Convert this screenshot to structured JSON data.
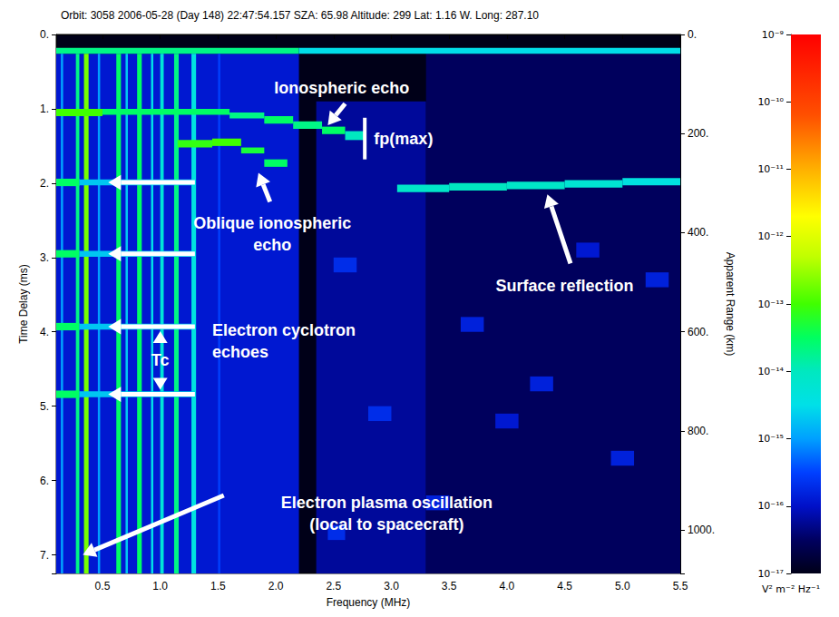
{
  "chart_data": {
    "type": "heatmap",
    "title": "Orbit: 3058 2006-05-28 (Day 148) 22:47:54.157 SZA: 65.98 Altitude: 299 Lat: 1.16 W. Long: 287.10",
    "x_label": "Frequency (MHz)",
    "y_label": "Time Delay (ms)",
    "y2_label": "Apparent Range (km)",
    "xlim": [
      0.1,
      5.5
    ],
    "xticks": [
      0.5,
      {
        "value": 1,
        "label": "1.0"
      },
      1.5,
      {
        "value": 2,
        "label": "2.0"
      },
      2.5,
      {
        "value": 3,
        "label": "3.0"
      },
      3.5,
      {
        "value": 4,
        "label": "4.0"
      },
      4.5,
      {
        "value": 5,
        "label": "5.0"
      },
      5.5
    ],
    "ylim": [
      0,
      7.25
    ],
    "yticks": [
      {
        "value": 0,
        "label": "0."
      },
      {
        "value": 1,
        "label": "1."
      },
      {
        "value": 2,
        "label": "2."
      },
      {
        "value": 3,
        "label": "3."
      },
      {
        "value": 4,
        "label": "4."
      },
      {
        "value": 5,
        "label": "5."
      },
      {
        "value": 6,
        "label": "6."
      },
      {
        "value": 7,
        "label": "7."
      }
    ],
    "y2lim": [
      0,
      1087.5
    ],
    "y2ticks": [
      {
        "value": 0,
        "label": "0."
      },
      {
        "value": 200,
        "label": "200."
      },
      {
        "value": 400,
        "label": "400."
      },
      {
        "value": 600,
        "label": "600."
      },
      {
        "value": 800,
        "label": "800."
      },
      {
        "value": 1000,
        "label": "1000."
      }
    ],
    "grid": false,
    "colorbar": {
      "label": "V² m⁻² Hz⁻¹",
      "log": true,
      "range": [
        1e-17,
        1e-09
      ],
      "ticks": [
        {
          "value": 1e-17,
          "label": "10⁻¹⁷"
        },
        {
          "value": 1e-16,
          "label": "10⁻¹⁶"
        },
        {
          "value": 1e-15,
          "label": "10⁻¹⁵"
        },
        {
          "value": 1e-14,
          "label": "10⁻¹⁴"
        },
        {
          "value": 1e-13,
          "label": "10⁻¹³"
        },
        {
          "value": 1e-12,
          "label": "10⁻¹²"
        },
        {
          "value": 1e-11,
          "label": "10⁻¹¹"
        },
        {
          "value": 1e-10,
          "label": "10⁻¹⁰"
        },
        {
          "value": 1e-09,
          "label": "10⁻⁹"
        }
      ]
    },
    "cells": [
      [
        0.1,
        2.2,
        0.26,
        7.25,
        1.2e-16
      ],
      [
        2.35,
        3.3,
        0.9,
        7.25,
        6e-17
      ],
      [
        3.3,
        5.5,
        0.26,
        7.25,
        3e-17
      ],
      [
        0.1,
        2.2,
        0.18,
        0.26,
        2e-14
      ],
      [
        2.2,
        5.5,
        0.18,
        0.26,
        3e-15
      ],
      [
        2.5,
        2.7,
        3.0,
        3.2,
        2e-16
      ],
      [
        2.8,
        3.0,
        5.0,
        5.2,
        2e-16
      ],
      [
        2.45,
        2.6,
        6.6,
        6.8,
        2e-16
      ],
      [
        3.6,
        3.8,
        3.8,
        4.0,
        1.5e-16
      ],
      [
        4.2,
        4.4,
        4.6,
        4.8,
        1.5e-16
      ],
      [
        4.9,
        5.1,
        5.6,
        5.8,
        1.5e-16
      ],
      [
        3.3,
        3.5,
        6.2,
        6.4,
        1.5e-16
      ],
      [
        5.2,
        5.4,
        3.2,
        3.4,
        1.5e-16
      ],
      [
        3.9,
        4.1,
        5.1,
        5.3,
        1.2e-16
      ],
      [
        4.6,
        4.8,
        2.8,
        3.0,
        1.2e-16
      ],
      [
        0.14,
        0.16,
        0.26,
        7.25,
        1e-15
      ],
      [
        0.27,
        0.3,
        0.26,
        7.25,
        2e-14
      ],
      [
        0.34,
        0.38,
        0.26,
        7.25,
        2e-13
      ],
      [
        0.46,
        0.48,
        0.26,
        7.25,
        1e-15
      ],
      [
        0.62,
        0.66,
        0.26,
        7.25,
        3e-14
      ],
      [
        0.7,
        0.72,
        0.26,
        7.25,
        2e-15
      ],
      [
        0.8,
        0.84,
        0.26,
        7.25,
        3e-14
      ],
      [
        0.92,
        0.94,
        0.26,
        7.25,
        3e-15
      ],
      [
        1.0,
        1.03,
        0.26,
        7.25,
        5e-15
      ],
      [
        1.12,
        1.16,
        0.26,
        7.25,
        2e-14
      ],
      [
        1.27,
        1.31,
        0.26,
        7.25,
        4e-15
      ],
      [
        1.5,
        1.52,
        0.26,
        7.25,
        3e-16
      ],
      [
        0.1,
        0.3,
        1.94,
        2.04,
        3e-14
      ],
      [
        0.3,
        1.3,
        1.95,
        2.03,
        2e-15
      ],
      [
        0.1,
        0.3,
        2.9,
        3.0,
        3e-14
      ],
      [
        0.3,
        1.3,
        2.91,
        2.99,
        2e-15
      ],
      [
        0.1,
        0.3,
        3.88,
        3.98,
        3e-14
      ],
      [
        0.3,
        1.3,
        3.89,
        3.97,
        2e-15
      ],
      [
        0.1,
        0.3,
        4.79,
        4.89,
        3e-14
      ],
      [
        0.3,
        1.3,
        4.8,
        4.88,
        2e-15
      ],
      [
        0.1,
        0.5,
        1.0,
        1.1,
        1e-13
      ],
      [
        0.5,
        1.6,
        1.0,
        1.08,
        3e-14
      ],
      [
        1.6,
        1.9,
        1.05,
        1.13,
        2e-14
      ],
      [
        1.9,
        2.15,
        1.1,
        1.2,
        3e-14
      ],
      [
        2.15,
        2.4,
        1.17,
        1.27,
        2e-14
      ],
      [
        2.4,
        2.6,
        1.24,
        1.34,
        3e-14
      ],
      [
        2.6,
        2.78,
        1.3,
        1.42,
        1e-14
      ],
      [
        1.15,
        1.45,
        1.42,
        1.52,
        8e-14
      ],
      [
        1.45,
        1.7,
        1.4,
        1.5,
        1e-13
      ],
      [
        1.7,
        1.9,
        1.52,
        1.6,
        5e-14
      ],
      [
        1.9,
        2.1,
        1.68,
        1.78,
        3e-14
      ],
      [
        3.05,
        3.5,
        2.02,
        2.12,
        8e-15
      ],
      [
        3.5,
        4.0,
        2.0,
        2.1,
        1e-14
      ],
      [
        4.0,
        4.5,
        1.98,
        2.08,
        8e-15
      ],
      [
        4.5,
        5.0,
        1.96,
        2.06,
        6e-15
      ],
      [
        5.0,
        5.5,
        1.93,
        2.03,
        4e-15
      ]
    ],
    "annotations": [
      "Ionospheric echo",
      "fp(max)",
      "Oblique ionospheric\necho",
      "Surface reflection",
      "Electron cyclotron\nechoes",
      "Tc",
      "Electron plasma oscillation\n(local to spacecraft)"
    ]
  }
}
